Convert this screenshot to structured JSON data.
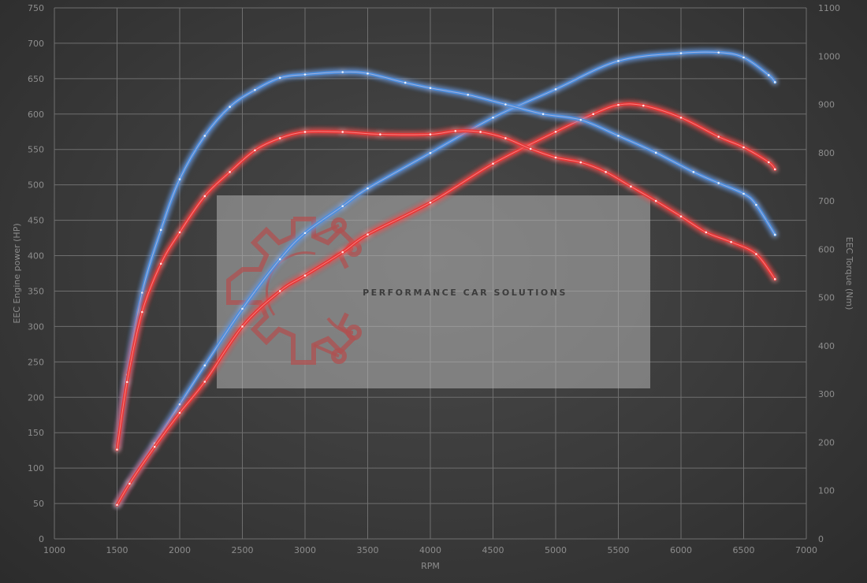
{
  "chart_data": {
    "type": "line",
    "xlabel": "RPM",
    "ylabel_left": "EEC Engine power (HP)",
    "ylabel_right": "EEC Torque (Nm)",
    "xlim": [
      1000,
      7000
    ],
    "ylim_left": [
      0,
      750
    ],
    "ylim_right": [
      0,
      1100
    ],
    "x_ticks": [
      1000,
      1500,
      2000,
      2500,
      3000,
      3500,
      4000,
      4500,
      5000,
      5500,
      6000,
      6500,
      7000
    ],
    "y_ticks_left": [
      0,
      50,
      100,
      150,
      200,
      250,
      300,
      350,
      400,
      450,
      500,
      550,
      600,
      650,
      700,
      750
    ],
    "y_ticks_right": [
      0,
      100,
      200,
      300,
      400,
      500,
      600,
      700,
      800,
      900,
      1000,
      1100
    ],
    "grid": true,
    "series": [
      {
        "color": "#4a8fe0",
        "axis": "left",
        "x": [
          1500,
          1600,
          1800,
          2000,
          2200,
          2500,
          2800,
          3000,
          3300,
          3500,
          4000,
          4500,
          5000,
          5500,
          6000,
          6300,
          6500,
          6700,
          6750
        ],
        "y": [
          48,
          80,
          135,
          190,
          245,
          325,
          395,
          432,
          470,
          495,
          545,
          595,
          635,
          675,
          686,
          687,
          680,
          655,
          645
        ]
      },
      {
        "color": "#e83434",
        "axis": "left",
        "x": [
          1500,
          1600,
          1800,
          2000,
          2200,
          2500,
          2800,
          3000,
          3300,
          3500,
          4000,
          4500,
          5000,
          5300,
          5500,
          5700,
          6000,
          6300,
          6500,
          6700,
          6750
        ],
        "y": [
          48,
          78,
          130,
          178,
          222,
          300,
          350,
          372,
          405,
          430,
          475,
          530,
          575,
          600,
          613,
          612,
          595,
          568,
          553,
          532,
          522
        ]
      },
      {
        "color": "#4a8fe0",
        "axis": "right",
        "x": [
          1500,
          1580,
          1700,
          1850,
          2000,
          2200,
          2400,
          2600,
          2800,
          3000,
          3300,
          3500,
          3800,
          4000,
          4300,
          4600,
          4900,
          5200,
          5500,
          5800,
          6100,
          6300,
          6500,
          6600,
          6750
        ],
        "y": [
          190,
          340,
          510,
          640,
          745,
          835,
          895,
          930,
          955,
          962,
          967,
          964,
          945,
          934,
          920,
          900,
          880,
          868,
          835,
          800,
          760,
          737,
          715,
          692,
          630
        ]
      },
      {
        "color": "#e83434",
        "axis": "right",
        "x": [
          1500,
          1580,
          1700,
          1850,
          2000,
          2200,
          2400,
          2600,
          2800,
          3000,
          3300,
          3600,
          4000,
          4200,
          4400,
          4600,
          4800,
          5000,
          5200,
          5400,
          5600,
          5800,
          6000,
          6200,
          6400,
          6600,
          6750
        ],
        "y": [
          185,
          325,
          470,
          570,
          635,
          710,
          760,
          805,
          830,
          843,
          843,
          838,
          838,
          845,
          843,
          830,
          808,
          790,
          780,
          760,
          730,
          700,
          668,
          635,
          615,
          590,
          538
        ]
      }
    ]
  },
  "watermark": {
    "text": "PERFORMANCE CAR SOLUTIONS"
  }
}
